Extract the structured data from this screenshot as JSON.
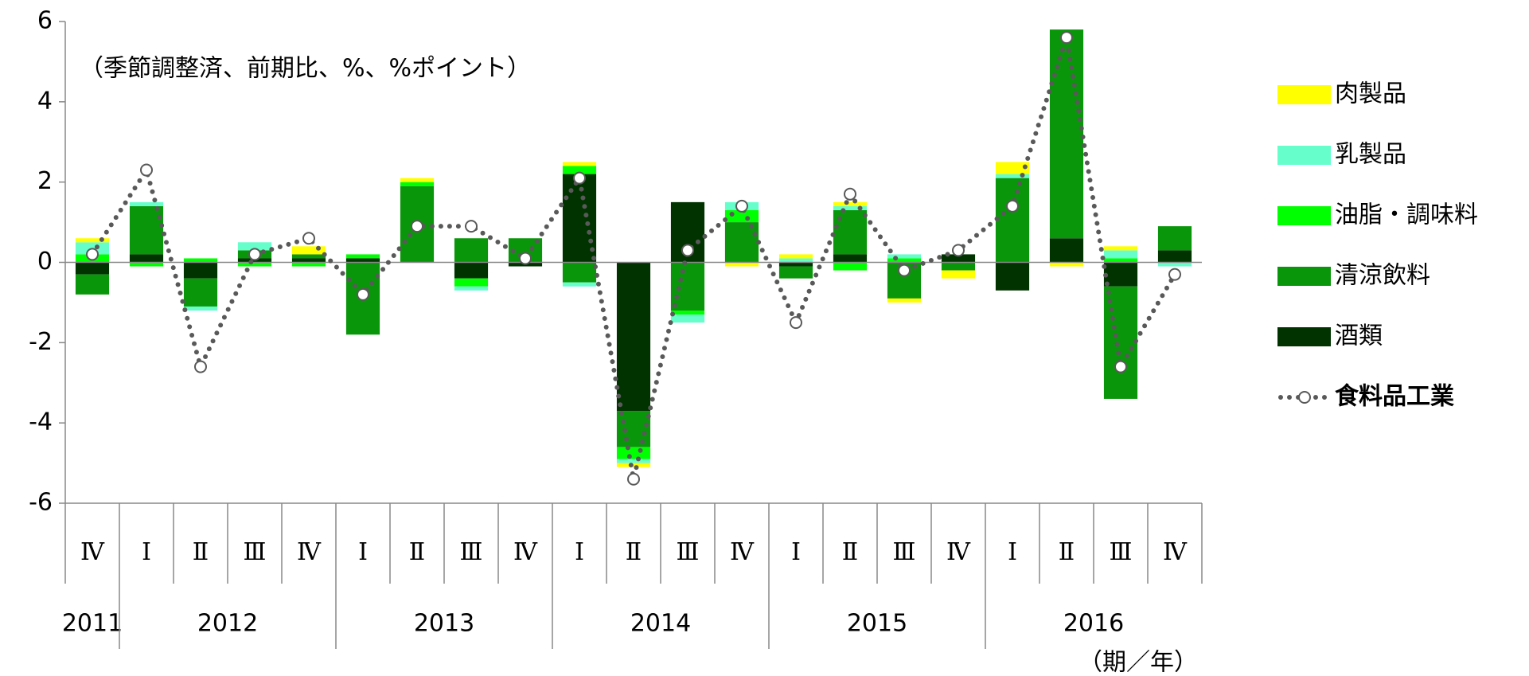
{
  "chart_data": {
    "type": "stacked_bar_line",
    "annotation": "（季節調整済、前期比、%、%ポイント）",
    "x_unit": "（期／年）",
    "categories": [
      "Ⅳ",
      "Ⅰ",
      "Ⅱ",
      "Ⅲ",
      "Ⅳ",
      "Ⅰ",
      "Ⅱ",
      "Ⅲ",
      "Ⅳ",
      "Ⅰ",
      "Ⅱ",
      "Ⅲ",
      "Ⅳ",
      "Ⅰ",
      "Ⅱ",
      "Ⅲ",
      "Ⅳ",
      "Ⅰ",
      "Ⅱ",
      "Ⅲ",
      "Ⅳ"
    ],
    "years": [
      {
        "label": "2011",
        "quarters": 1
      },
      {
        "label": "2012",
        "quarters": 4
      },
      {
        "label": "2013",
        "quarters": 4
      },
      {
        "label": "2014",
        "quarters": 4
      },
      {
        "label": "2015",
        "quarters": 4
      },
      {
        "label": "2016",
        "quarters": 4
      }
    ],
    "series": [
      {
        "name": "肉製品",
        "color": "#ffff00",
        "values": [
          0.1,
          0,
          0,
          0,
          0.2,
          0,
          0.1,
          0,
          0,
          0.1,
          -0.1,
          0,
          -0.1,
          0.1,
          0.1,
          -0.1,
          -0.2,
          0.3,
          -0.1,
          0.1,
          0
        ]
      },
      {
        "name": "乳製品",
        "color": "#66ffcc",
        "values": [
          0.3,
          0.1,
          -0.1,
          0.2,
          0,
          0,
          0,
          -0.1,
          0,
          -0.1,
          -0.1,
          -0.2,
          0.2,
          0.1,
          0.1,
          0.1,
          0,
          0.1,
          0,
          0.2,
          -0.1
        ]
      },
      {
        "name": "油脂・調味料",
        "color": "#00ff00",
        "values": [
          0.2,
          -0.1,
          0.1,
          -0.1,
          -0.1,
          0.1,
          0.1,
          -0.2,
          0,
          0.2,
          -0.3,
          -0.1,
          0.3,
          0,
          -0.2,
          0.1,
          0,
          0,
          0,
          0.1,
          0
        ]
      },
      {
        "name": "清涼飲料",
        "color": "#0a960a",
        "values": [
          -0.5,
          1.2,
          -0.7,
          0.2,
          0.1,
          -1.8,
          1.9,
          0.6,
          0.6,
          -0.5,
          -0.9,
          -1.2,
          1.0,
          -0.3,
          1.1,
          -0.9,
          -0.2,
          2.1,
          5.2,
          -2.8,
          0.6
        ]
      },
      {
        "name": "酒類",
        "color": "#003300",
        "values": [
          -0.3,
          0.2,
          -0.4,
          0.1,
          0.1,
          0.1,
          0,
          -0.4,
          -0.1,
          2.2,
          -3.7,
          1.5,
          0,
          -0.1,
          0.2,
          0,
          0.2,
          -0.7,
          0.6,
          -0.6,
          0.3
        ]
      }
    ],
    "line": {
      "name": "食料品工業",
      "color": "#595959",
      "values": [
        0.2,
        2.3,
        -2.6,
        0.2,
        0.6,
        -0.8,
        0.9,
        0.9,
        0.1,
        2.1,
        -5.4,
        0.3,
        1.4,
        -1.5,
        1.7,
        -0.2,
        0.3,
        1.4,
        5.6,
        -2.6,
        -0.3
      ]
    },
    "ylim": [
      -6,
      6
    ],
    "yticks": [
      -6,
      -4,
      -2,
      0,
      2,
      4,
      6
    ]
  }
}
